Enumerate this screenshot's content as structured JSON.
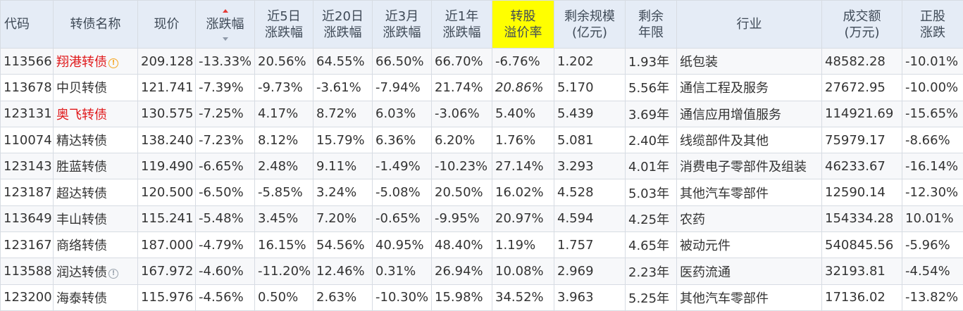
{
  "headers": {
    "code": "代码",
    "name": "转债名称",
    "price": "现价",
    "change": "涨跌幅",
    "chg5d_1": "近5日",
    "chg5d_2": "涨跌幅",
    "chg20d_1": "近20日",
    "chg20d_2": "涨跌幅",
    "chg3m_1": "近3月",
    "chg3m_2": "涨跌幅",
    "chg1y_1": "近1年",
    "chg1y_2": "涨跌幅",
    "premium_1": "转股",
    "premium_2": "溢价率",
    "scale_1": "剩余规模",
    "scale_2": "(亿元)",
    "term_1": "剩余",
    "term_2": "年限",
    "industry": "行业",
    "amount_1": "成交额",
    "amount_2": "(万元)",
    "stock_1": "正股",
    "stock_2": "涨跌"
  },
  "colors": {
    "up": "#e0191b",
    "down": "#119d2f",
    "header_bg": "#e5ecf6",
    "highlight": "#ffff00",
    "code": "#1a5ea8"
  },
  "rows": [
    {
      "code": "113566",
      "name": "翔港转债",
      "name_color": "red",
      "icon": "warning-orange",
      "icon_char": "!",
      "price": "209.128",
      "change": "-13.33%",
      "chg5d": "20.56%",
      "chg20d": "64.55%",
      "chg3m": "66.50%",
      "chg1y": "66.70%",
      "premium": "-6.76%",
      "scale": "1.202",
      "term": "1.93年",
      "industry": "纸包装",
      "amount": "48582.28",
      "stock": "-10.01%"
    },
    {
      "code": "113678",
      "name": "中贝转债",
      "name_color": "normal",
      "icon": "",
      "icon_char": "",
      "price": "121.741",
      "change": "-7.39%",
      "chg5d": "-9.73%",
      "chg20d": "-3.61%",
      "chg3m": "-7.94%",
      "chg1y": "21.74%",
      "premium": "20.86%",
      "premium_style": "italic",
      "scale": "5.170",
      "term": "5.56年",
      "industry": "通信工程及服务",
      "amount": "27672.95",
      "stock": "-10.00%"
    },
    {
      "code": "123131",
      "name": "奥飞转债",
      "name_color": "red",
      "icon": "",
      "icon_char": "",
      "price": "130.575",
      "change": "-7.25%",
      "chg5d": "4.17%",
      "chg20d": "8.72%",
      "chg3m": "6.03%",
      "chg1y": "-3.06%",
      "premium": "5.40%",
      "scale": "5.439",
      "term": "3.69年",
      "industry": "通信应用增值服务",
      "amount": "114921.69",
      "stock": "-15.65%"
    },
    {
      "code": "110074",
      "name": "精达转债",
      "name_color": "normal",
      "icon": "",
      "icon_char": "",
      "price": "138.240",
      "change": "-7.23%",
      "chg5d": "8.12%",
      "chg20d": "15.79%",
      "chg3m": "6.36%",
      "chg1y": "6.20%",
      "premium": "1.76%",
      "scale": "5.081",
      "term": "2.40年",
      "industry": "线缆部件及其他",
      "amount": "75979.17",
      "stock": "-8.66%"
    },
    {
      "code": "123143",
      "name": "胜蓝转债",
      "name_color": "normal",
      "icon": "",
      "icon_char": "",
      "price": "119.490",
      "change": "-6.65%",
      "chg5d": "2.48%",
      "chg20d": "9.11%",
      "chg3m": "-1.49%",
      "chg1y": "-10.23%",
      "premium": "27.14%",
      "scale": "3.293",
      "term": "4.01年",
      "industry": "消费电子零部件及组装",
      "amount": "46233.67",
      "stock": "-16.14%"
    },
    {
      "code": "123187",
      "name": "超达转债",
      "name_color": "normal",
      "icon": "",
      "icon_char": "",
      "price": "120.500",
      "change": "-6.50%",
      "chg5d": "-5.85%",
      "chg20d": "3.24%",
      "chg3m": "-5.08%",
      "chg1y": "20.50%",
      "premium": "16.02%",
      "scale": "4.528",
      "term": "5.03年",
      "industry": "其他汽车零部件",
      "amount": "12590.14",
      "stock": "-12.30%"
    },
    {
      "code": "113649",
      "name": "丰山转债",
      "name_color": "normal",
      "icon": "",
      "icon_char": "",
      "price": "115.241",
      "change": "-5.48%",
      "chg5d": "3.45%",
      "chg20d": "7.20%",
      "chg3m": "-0.65%",
      "chg1y": "-9.95%",
      "premium": "20.97%",
      "scale": "4.594",
      "term": "4.25年",
      "industry": "农药",
      "amount": "154334.28",
      "stock": "10.01%"
    },
    {
      "code": "123167",
      "name": "商络转债",
      "name_color": "normal",
      "icon": "",
      "icon_char": "",
      "price": "187.000",
      "change": "-4.79%",
      "chg5d": "16.15%",
      "chg20d": "54.56%",
      "chg3m": "40.95%",
      "chg1y": "48.40%",
      "premium": "1.19%",
      "scale": "1.757",
      "term": "4.65年",
      "industry": "被动元件",
      "amount": "540845.56",
      "stock": "-5.96%"
    },
    {
      "code": "113588",
      "name": "润达转债",
      "name_color": "normal",
      "icon": "info-gray",
      "icon_char": "!",
      "price": "167.972",
      "change": "-4.60%",
      "chg5d": "-11.20%",
      "chg20d": "12.46%",
      "chg3m": "0.31%",
      "chg1y": "26.94%",
      "premium": "10.08%",
      "scale": "2.969",
      "term": "2.23年",
      "industry": "医药流通",
      "amount": "32193.81",
      "stock": "-4.54%"
    },
    {
      "code": "123200",
      "name": "海泰转债",
      "name_color": "normal",
      "icon": "",
      "icon_char": "",
      "price": "115.976",
      "change": "-4.56%",
      "chg5d": "0.50%",
      "chg20d": "2.63%",
      "chg3m": "-10.30%",
      "chg1y": "15.98%",
      "premium": "34.52%",
      "scale": "3.963",
      "term": "5.25年",
      "industry": "其他汽车零部件",
      "amount": "17136.02",
      "stock": "-13.82%"
    }
  ]
}
